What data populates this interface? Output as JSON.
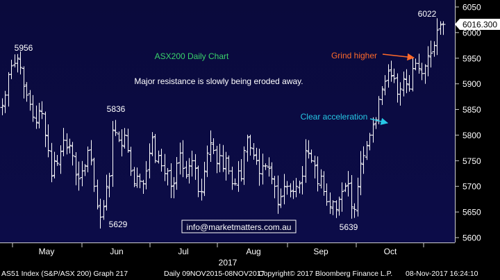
{
  "chart_data": {
    "type": "bar",
    "subtype": "ohlc",
    "x_axis": {
      "months": [
        "May",
        "Jun",
        "Jul",
        "Aug",
        "Sep",
        "Oct"
      ],
      "year": "2017"
    },
    "y_axis": {
      "ticks": [
        "5600",
        "5650",
        "5700",
        "5750",
        "5800",
        "5850",
        "5900",
        "5950",
        "6000",
        "6050"
      ],
      "ylim": [
        5600,
        6050
      ],
      "position": "right"
    },
    "last_price": "6016.300",
    "grid": false,
    "annotations": {
      "chart_title": "ASX200 Daily Chart",
      "comment": "Major resistance is slowly being eroded away.",
      "clear_acceleration": "Clear acceleration",
      "grind_higher": "Grind higher",
      "watermark": "info@marketmatters.com.au"
    },
    "price_labels": [
      {
        "text": "5956",
        "value": 5956
      },
      {
        "text": "5836",
        "value": 5836
      },
      {
        "text": "5629",
        "value": 5629
      },
      {
        "text": "5639",
        "value": 5639
      },
      {
        "text": "6022",
        "value": 6022
      }
    ],
    "closes": [
      5858,
      5878,
      5918,
      5935,
      5940,
      5950,
      5932,
      5895,
      5878,
      5860,
      5835,
      5825,
      5848,
      5842,
      5800,
      5770,
      5720,
      5750,
      5745,
      5768,
      5790,
      5775,
      5780,
      5760,
      5722,
      5715,
      5730,
      5740,
      5770,
      5750,
      5700,
      5660,
      5640,
      5660,
      5700,
      5720,
      5810,
      5805,
      5790,
      5780,
      5800,
      5770,
      5730,
      5705,
      5720,
      5710,
      5705,
      5730,
      5765,
      5795,
      5750,
      5760,
      5740,
      5725,
      5730,
      5700,
      5705,
      5745,
      5765,
      5735,
      5720,
      5740,
      5750,
      5735,
      5690,
      5690,
      5730,
      5765,
      5785,
      5770,
      5745,
      5760,
      5735,
      5755,
      5730,
      5705,
      5705,
      5730,
      5715,
      5770,
      5795,
      5775,
      5760,
      5750,
      5725,
      5740,
      5740,
      5735,
      5715,
      5700,
      5665,
      5680,
      5700,
      5700,
      5690,
      5690,
      5700,
      5705,
      5720,
      5770,
      5765,
      5750,
      5740,
      5705,
      5720,
      5690,
      5670,
      5660,
      5670,
      5655,
      5675,
      5690,
      5700,
      5705,
      5660,
      5655,
      5700,
      5745,
      5760,
      5780,
      5800,
      5820,
      5830,
      5870,
      5890,
      5905,
      5925,
      5915,
      5910,
      5880,
      5890,
      5910,
      5900,
      5890,
      5930,
      5940,
      5930,
      5920,
      5935,
      5955,
      5960,
      5975,
      6005,
      6015,
      6016
    ]
  }
}
